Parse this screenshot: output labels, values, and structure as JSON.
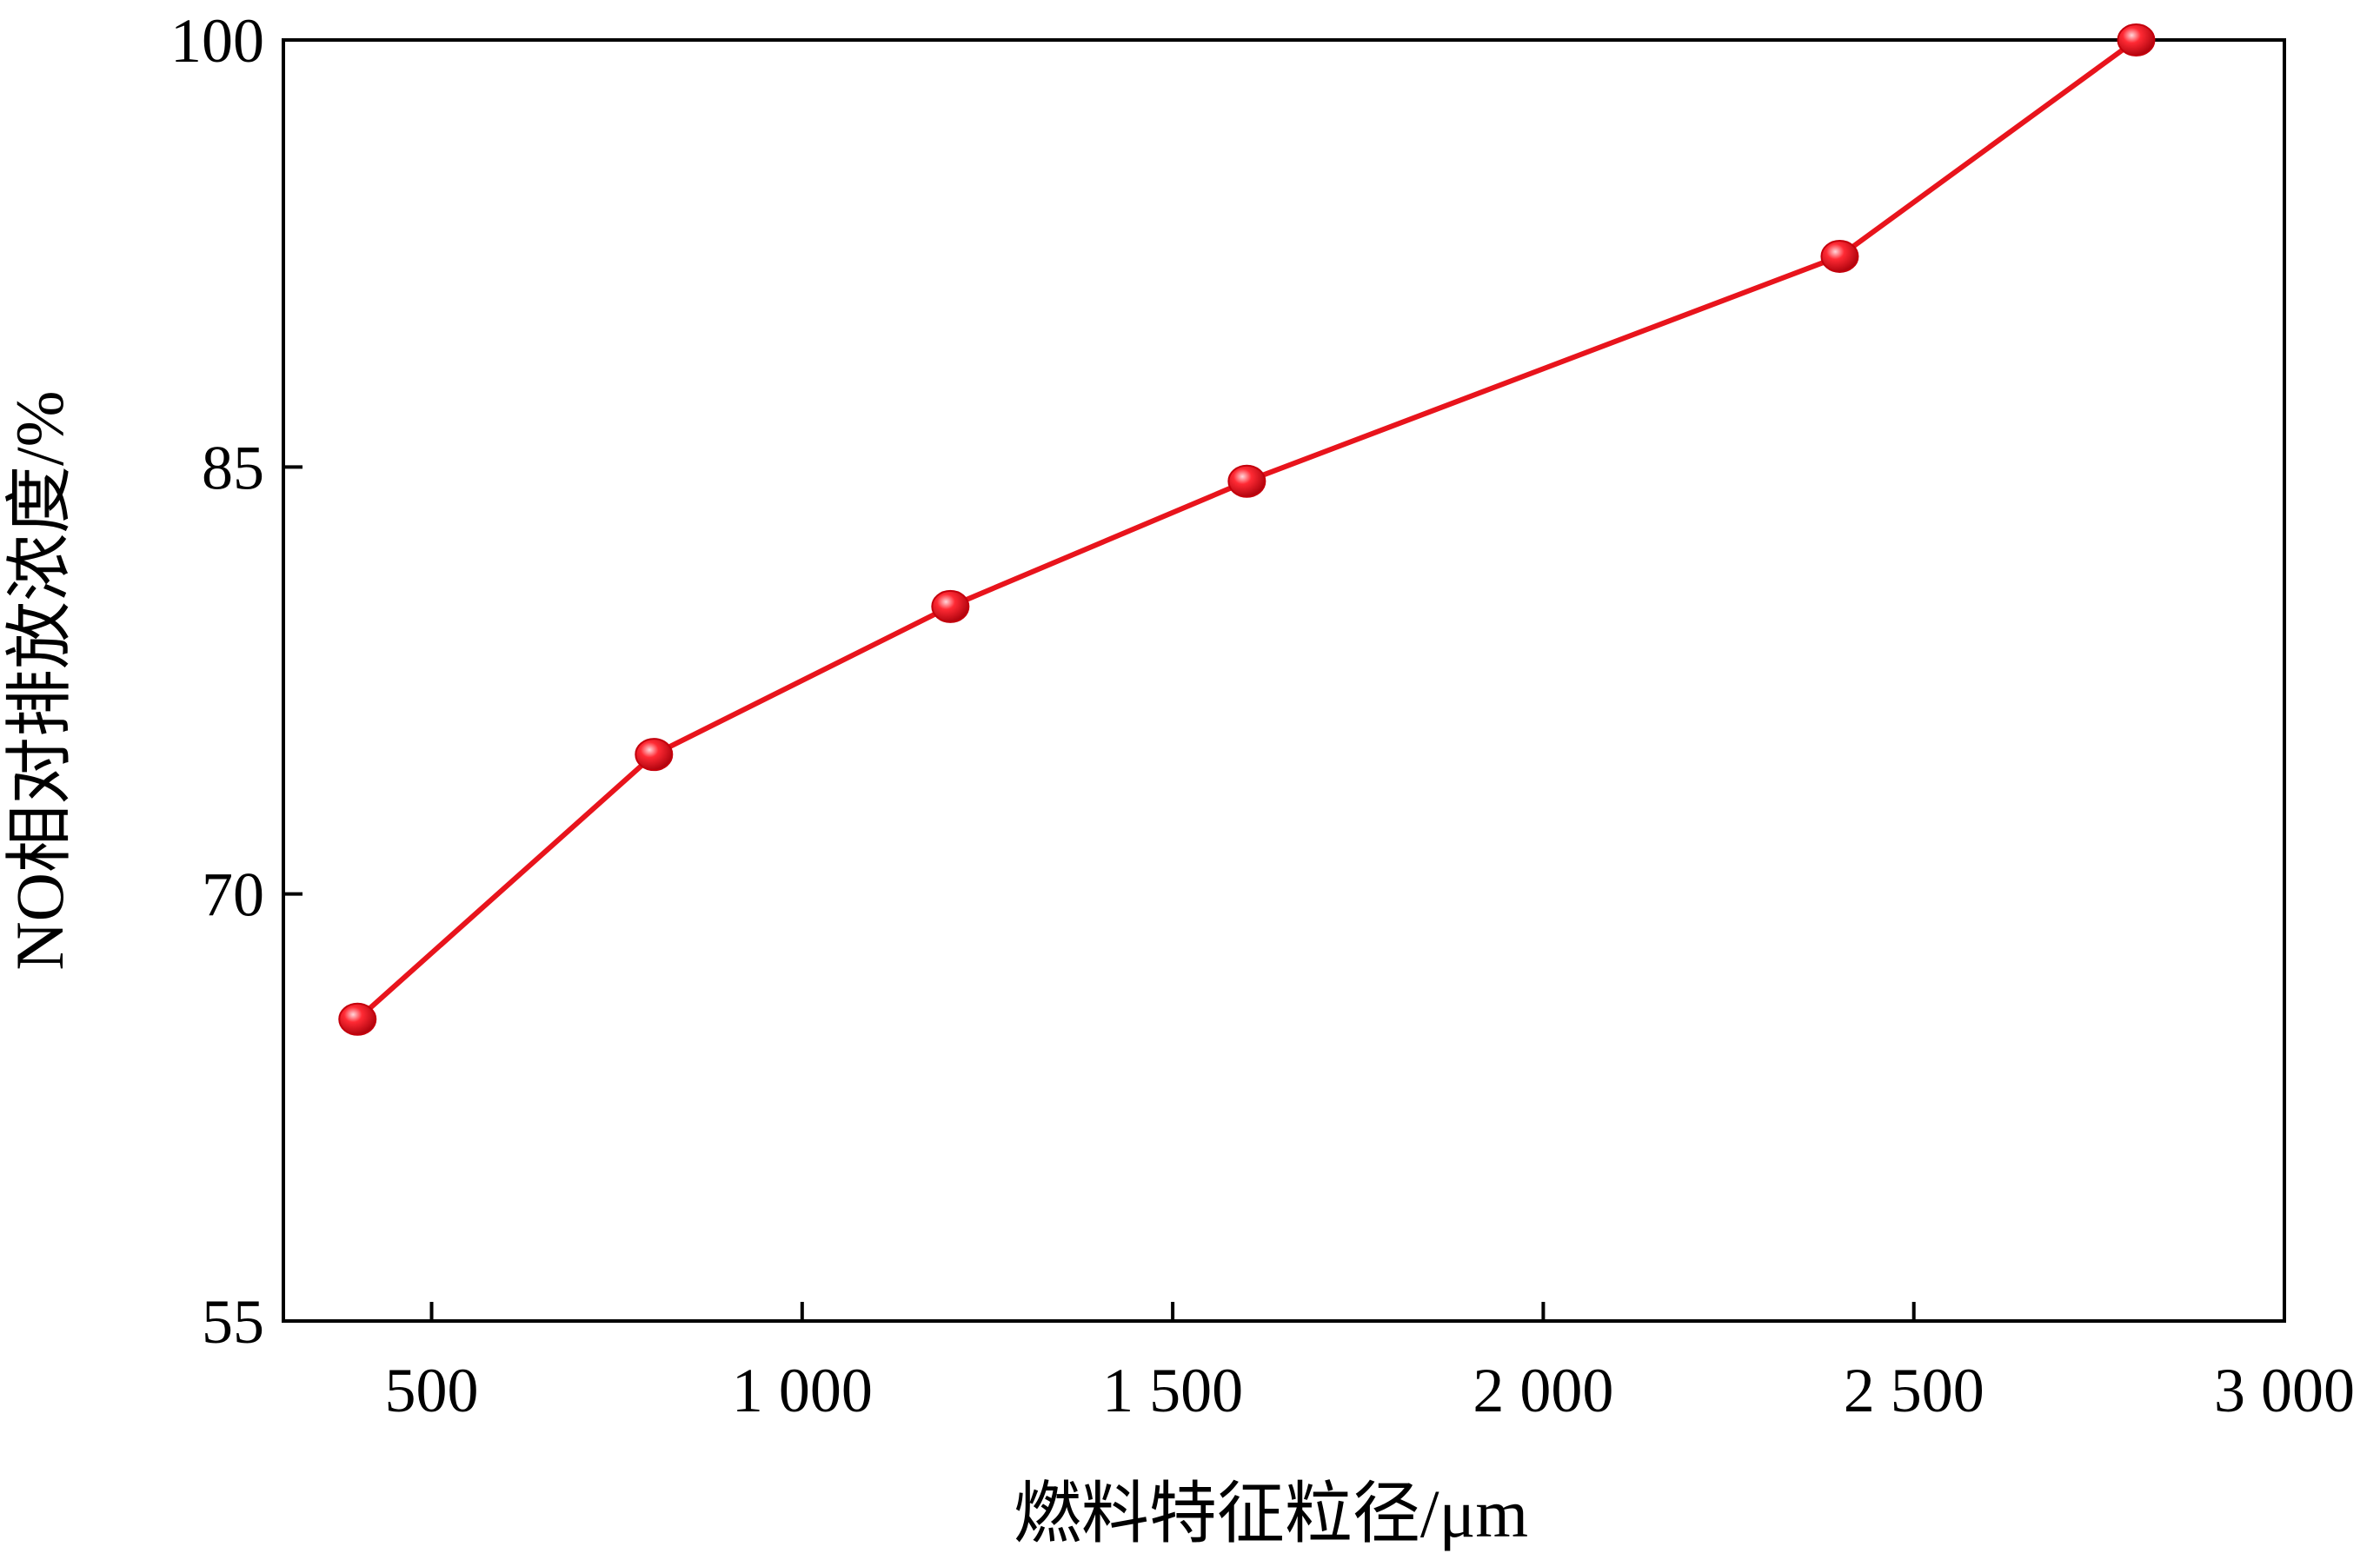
{
  "chart_data": {
    "type": "line",
    "title": "",
    "xlabel": "燃料特征粒径/μm",
    "ylabel": "NO相对排放浓度/%",
    "xlim": [
      300,
      3000
    ],
    "ylim": [
      55,
      100
    ],
    "xticks": [
      500,
      1000,
      1500,
      2000,
      2500,
      3000
    ],
    "xtick_labels": [
      "500",
      "1 000",
      "1 500",
      "2 000",
      "2 500",
      "3 000"
    ],
    "yticks": [
      55,
      70,
      85,
      100
    ],
    "ytick_labels": [
      "55",
      "70",
      "85",
      "100"
    ],
    "grid": false,
    "legend": "none",
    "series": [
      {
        "color": "#e8141c",
        "marker": "circle",
        "x": [
          400,
          800,
          1200,
          1600,
          2400,
          2800
        ],
        "y": [
          65.6,
          74.9,
          80.1,
          84.5,
          92.4,
          100
        ]
      }
    ]
  }
}
